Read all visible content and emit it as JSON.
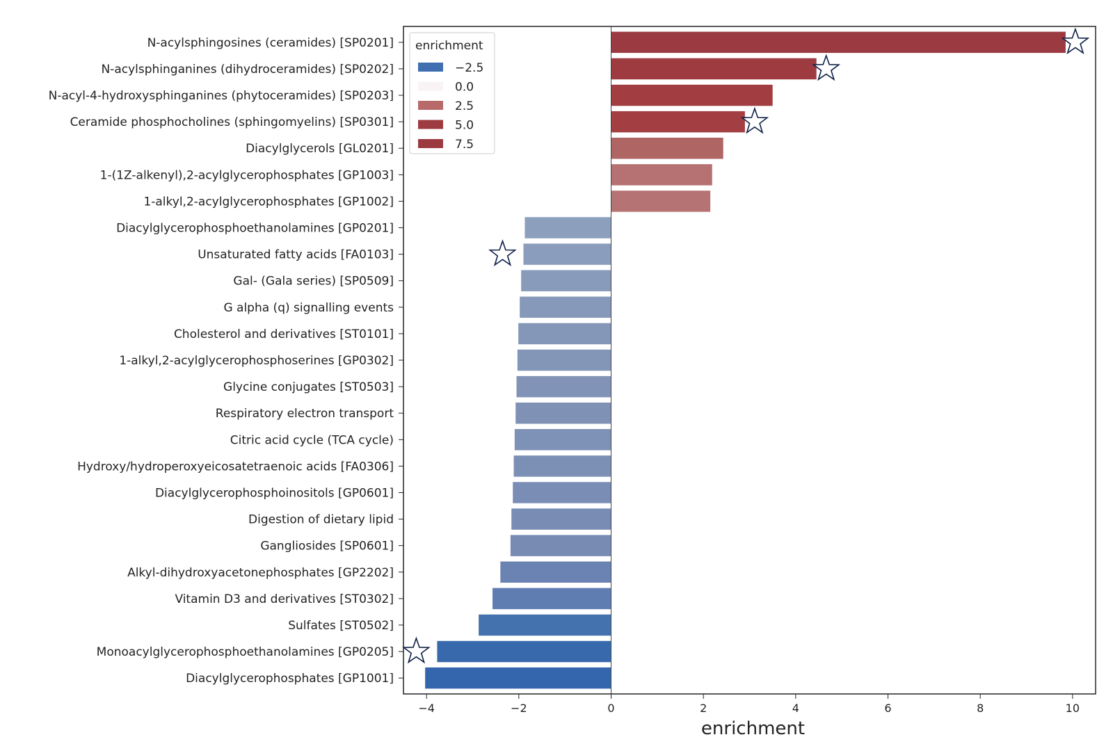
{
  "chart_data": {
    "type": "bar",
    "orientation": "horizontal",
    "xlabel": "enrichment",
    "ylabel": "",
    "xlim": [
      -4.5,
      10.5
    ],
    "xticks": [
      -4,
      -2,
      0,
      2,
      4,
      6,
      8,
      10
    ],
    "xtick_labels": [
      "−4",
      "−2",
      "0",
      "2",
      "4",
      "6",
      "8",
      "10"
    ],
    "grid": false,
    "legend": {
      "title": "enrichment",
      "placement": "top-left",
      "entries": [
        {
          "label": "−2.5",
          "color": "#3f6fb0"
        },
        {
          "label": "0.0",
          "color": "#faf3f5"
        },
        {
          "label": "2.5",
          "color": "#b86a6a"
        },
        {
          "label": "5.0",
          "color": "#9e3b40"
        },
        {
          "label": "7.5",
          "color": "#9b3a40"
        }
      ]
    },
    "categories": [
      "N-acylsphingosines (ceramides) [SP0201]",
      "N-acylsphinganines (dihydroceramides) [SP0202]",
      "N-acyl-4-hydroxysphinganines (phytoceramides) [SP0203]",
      "Ceramide phosphocholines (sphingomyelins) [SP0301]",
      "Diacylglycerols [GL0201]",
      "1-(1Z-alkenyl),2-acylglycerophosphates [GP1003]",
      "1-alkyl,2-acylglycerophosphates [GP1002]",
      "Diacylglycerophosphoethanolamines [GP0201]",
      "Unsaturated fatty acids [FA0103]",
      "Gal- (Gala series) [SP0509]",
      "G alpha (q) signalling events",
      "Cholesterol and derivatives [ST0101]",
      "1-alkyl,2-acylglycerophosphoserines [GP0302]",
      "Glycine conjugates [ST0503]",
      "Respiratory electron transport",
      "Citric acid cycle (TCA cycle)",
      "Hydroxy/hydroperoxyeicosatetraenoic acids [FA0306]",
      "Diacylglycerophosphoinositols [GP0601]",
      "Digestion of dietary lipid",
      "Gangliosides [SP0601]",
      "Alkyl-dihydroxyacetonephosphates [GP2202]",
      "Vitamin D3 and derivatives [ST0302]",
      "Sulfates [ST0502]",
      "Monoacylglycerophosphoethanolamines [GP0205]",
      "Diacylglycerophosphates [GP1001]"
    ],
    "values": [
      9.85,
      4.45,
      3.5,
      2.9,
      2.43,
      2.19,
      2.15,
      -1.87,
      -1.9,
      -1.95,
      -1.98,
      -2.01,
      -2.03,
      -2.05,
      -2.07,
      -2.09,
      -2.11,
      -2.13,
      -2.16,
      -2.18,
      -2.4,
      -2.57,
      -2.87,
      -3.77,
      -4.03
    ],
    "colors": [
      "#9b3a40",
      "#9e3b40",
      "#a23d42",
      "#a33e43",
      "#b06565",
      "#b67272",
      "#b67373",
      "#8c9fbd",
      "#8a9dbc",
      "#889bbb",
      "#8699ba",
      "#8497b9",
      "#8396b8",
      "#8194b7",
      "#7f92b6",
      "#7e91b6",
      "#7c8fb5",
      "#7a8db4",
      "#788cb4",
      "#778bb3",
      "#6b83b2",
      "#5f7db1",
      "#4472ae",
      "#3769ac",
      "#3366ac"
    ],
    "starred": [
      true,
      true,
      false,
      true,
      false,
      false,
      false,
      false,
      true,
      false,
      false,
      false,
      false,
      false,
      false,
      false,
      false,
      false,
      false,
      false,
      false,
      false,
      false,
      true,
      false
    ]
  }
}
